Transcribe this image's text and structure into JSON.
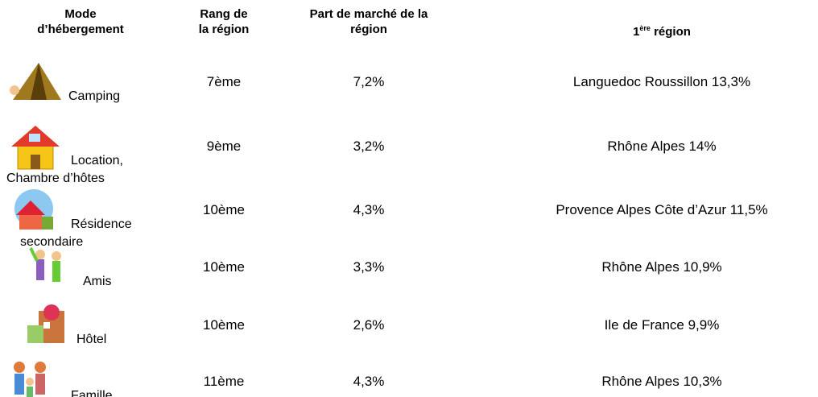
{
  "table": {
    "header": [
      {
        "lines": [
          "Mode",
          "d’hébergement"
        ]
      },
      {
        "lines": [
          "Rang de",
          "la région"
        ]
      },
      {
        "lines": [
          "Part de marché de la",
          "région"
        ]
      },
      {
        "lines": [
          "1"
        ],
        "sup": "ère",
        "rest": " région"
      }
    ],
    "rows": [
      {
        "mode": [
          "Camping"
        ],
        "rang": "7ème",
        "part": "7,2%",
        "region": "Languedoc Roussillon 13,3%"
      },
      {
        "mode": [
          "Location,",
          "Chambre d’hôtes"
        ],
        "rang": "9ème",
        "part": "3,2%",
        "region": "Rhône Alpes 14%"
      },
      {
        "mode": [
          "Résidence",
          "secondaire"
        ],
        "rang": "10ème",
        "part": "4,3%",
        "region": "Provence Alpes Côte d’Azur 11,5%"
      },
      {
        "mode": [
          "Amis"
        ],
        "rang": "10ème",
        "part": "3,3%",
        "region": "Rhône Alpes 10,9%"
      },
      {
        "mode": [
          "Hôtel"
        ],
        "rang": "10ème",
        "part": "2,6%",
        "region": "Ile de France 9,9%"
      },
      {
        "mode": [
          "Famille"
        ],
        "rang": "11ème",
        "part": "4,3%",
        "region": "Rhône Alpes 10,3%"
      }
    ]
  }
}
